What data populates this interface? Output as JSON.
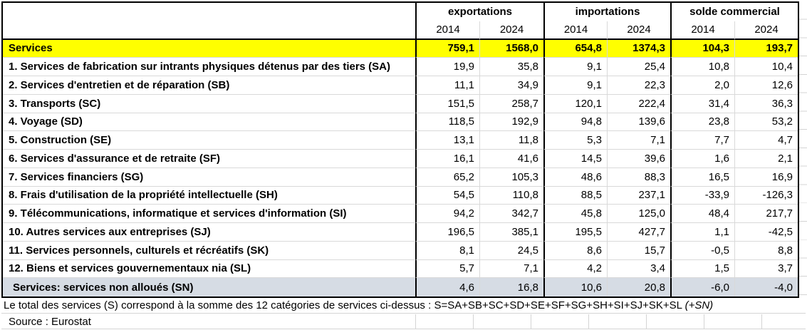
{
  "table": {
    "col_groups": [
      {
        "label": "exportations",
        "years": [
          "2014",
          "2024"
        ]
      },
      {
        "label": "importations",
        "years": [
          "2014",
          "2024"
        ]
      },
      {
        "label": "solde commercial",
        "years": [
          "2014",
          "2024"
        ]
      }
    ],
    "total_row": {
      "label": "Services",
      "values": [
        "759,1",
        "1568,0",
        "654,8",
        "1374,3",
        "104,3",
        "193,7"
      ]
    },
    "rows": [
      {
        "label": "1. Services de fabrication sur intrants physiques détenus par des tiers (SA)",
        "values": [
          "19,9",
          "35,8",
          "9,1",
          "25,4",
          "10,8",
          "10,4"
        ]
      },
      {
        "label": "2. Services d'entretien et de réparation (SB)",
        "values": [
          "11,1",
          "34,9",
          "9,1",
          "22,3",
          "2,0",
          "12,6"
        ]
      },
      {
        "label": "3. Transports (SC)",
        "values": [
          "151,5",
          "258,7",
          "120,1",
          "222,4",
          "31,4",
          "36,3"
        ]
      },
      {
        "label": "4. Voyage (SD)",
        "values": [
          "118,5",
          "192,9",
          "94,8",
          "139,6",
          "23,8",
          "53,2"
        ]
      },
      {
        "label": "5. Construction (SE)",
        "values": [
          "13,1",
          "11,8",
          "5,3",
          "7,1",
          "7,7",
          "4,7"
        ]
      },
      {
        "label": "6. Services d'assurance et de retraite (SF)",
        "values": [
          "16,1",
          "41,6",
          "14,5",
          "39,6",
          "1,6",
          "2,1"
        ]
      },
      {
        "label": "7. Services financiers (SG)",
        "values": [
          "65,2",
          "105,3",
          "48,6",
          "88,3",
          "16,5",
          "16,9"
        ]
      },
      {
        "label": "8. Frais d'utilisation de la propriété intellectuelle (SH)",
        "values": [
          "54,5",
          "110,8",
          "88,5",
          "237,1",
          "-33,9",
          "-126,3"
        ]
      },
      {
        "label": "9. Télécommunications, informatique et services d'information (SI)",
        "values": [
          "94,2",
          "342,7",
          "45,8",
          "125,0",
          "48,4",
          "217,7"
        ]
      },
      {
        "label": "10. Autres services aux entreprises (SJ)",
        "values": [
          "196,5",
          "385,1",
          "195,5",
          "427,7",
          "1,1",
          "-42,5"
        ]
      },
      {
        "label": "11. Services personnels, culturels et récréatifs (SK)",
        "values": [
          "8,1",
          "24,5",
          "8,6",
          "15,7",
          "-0,5",
          "8,8"
        ]
      },
      {
        "label": "12. Biens et services gouvernementaux nia (SL)",
        "values": [
          "5,7",
          "7,1",
          "4,2",
          "3,4",
          "1,5",
          "3,7"
        ]
      }
    ],
    "unallocated_row": {
      "label": "Services: services non alloués (SN)",
      "values": [
        "4,6",
        "16,8",
        "10,6",
        "20,8",
        "-6,0",
        "-4,0"
      ]
    },
    "footnote_text": "Le total des services (S) correspond à la somme des 12 catégories de services ci-dessus : S=SA+SB+SC+SD+SE+SF+SG+SH+SI+SJ+SK+SL ",
    "footnote_italic": "(+SN)",
    "source": "Source : Eurostat"
  },
  "colors": {
    "total_row_highlight": "#ffff00",
    "unallocated_row_bg": "#d6dce4",
    "gridline": "#d4d4d4",
    "table_border": "#000000"
  }
}
